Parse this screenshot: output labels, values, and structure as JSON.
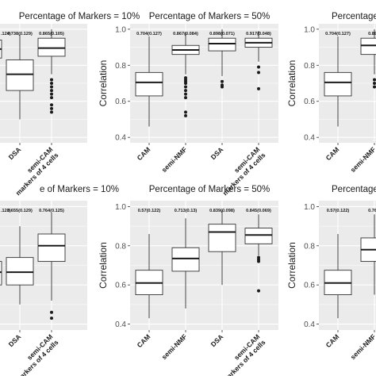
{
  "chart_data": [
    {
      "type": "box",
      "title": "Percentage of Markers = 10%",
      "ylabel": "",
      "ylim": [
        0.4,
        1.0
      ],
      "y_ticks": [],
      "grid": true,
      "crop": "left",
      "categories": [
        "",
        "DSA",
        "semi-CAM\nmarkers of 4 cells"
      ],
      "stat_labels": [
        ".124)",
        "0.738(0.129)",
        "0.865(0.105)"
      ],
      "boxes": [
        {
          "whisker_low": 0.79,
          "q1": 0.84,
          "median": 0.89,
          "q3": 0.94,
          "whisker_high": 1.0,
          "outliers": []
        },
        {
          "whisker_low": 0.5,
          "q1": 0.66,
          "median": 0.75,
          "q3": 0.83,
          "whisker_high": 0.97,
          "outliers": []
        },
        {
          "whisker_low": 0.75,
          "q1": 0.85,
          "median": 0.895,
          "q3": 0.95,
          "whisker_high": 1.0,
          "outliers": [
            0.72,
            0.7,
            0.68,
            0.66,
            0.64,
            0.62,
            0.58,
            0.56,
            0.54
          ]
        }
      ]
    },
    {
      "type": "box",
      "title": "Percentage of Markers = 50%",
      "ylabel": "Correlation",
      "ylim": [
        0.4,
        1.0
      ],
      "y_ticks": [
        "0.4",
        "0.6",
        "0.8",
        "1.0"
      ],
      "grid": true,
      "crop": "none",
      "categories": [
        "CAM",
        "semi-NMF",
        "DSA",
        "semi-CAM\nmarkers of 4 cells"
      ],
      "stat_labels": [
        "0.704(0.127)",
        "0.867(0.084)",
        "0.898(0.071)",
        "0.917(0.048)"
      ],
      "boxes": [
        {
          "whisker_low": 0.46,
          "q1": 0.63,
          "median": 0.705,
          "q3": 0.76,
          "whisker_high": 0.96,
          "outliers": []
        },
        {
          "whisker_low": 0.75,
          "q1": 0.86,
          "median": 0.885,
          "q3": 0.91,
          "whisker_high": 0.98,
          "outliers": [
            0.73,
            0.72,
            0.71,
            0.7,
            0.68,
            0.66,
            0.64,
            0.62,
            0.54,
            0.52
          ]
        },
        {
          "whisker_low": 0.74,
          "q1": 0.88,
          "median": 0.92,
          "q3": 0.95,
          "whisker_high": 1.0,
          "outliers": [
            0.71,
            0.69,
            0.68
          ]
        },
        {
          "whisker_low": 0.82,
          "q1": 0.9,
          "median": 0.925,
          "q3": 0.95,
          "whisker_high": 0.99,
          "outliers": [
            0.79,
            0.76,
            0.67
          ]
        }
      ]
    },
    {
      "type": "box",
      "title": "Percentage",
      "ylabel": "Correlation",
      "ylim": [
        0.4,
        1.0
      ],
      "y_ticks": [
        "0.4",
        "0.6",
        "0.8",
        "1.0"
      ],
      "grid": true,
      "crop": "right",
      "categories": [
        "CAM",
        "semi-NMF"
      ],
      "stat_labels": [
        "0.704(0.127)",
        "0.895("
      ],
      "boxes": [
        {
          "whisker_low": 0.46,
          "q1": 0.63,
          "median": 0.705,
          "q3": 0.76,
          "whisker_high": 0.96,
          "outliers": []
        },
        {
          "whisker_low": 0.75,
          "q1": 0.86,
          "median": 0.91,
          "q3": 0.95,
          "whisker_high": 1.0,
          "outliers": [
            0.72,
            0.7,
            0.68
          ]
        }
      ]
    },
    {
      "type": "box",
      "title": "e of Markers = 10%",
      "ylabel": "",
      "ylim": [
        0.4,
        1.0
      ],
      "y_ticks": [],
      "grid": true,
      "crop": "left",
      "categories": [
        "",
        "DSA",
        "semi-CAM\nmarkers of 4 cells"
      ],
      "stat_labels": [
        ".123)",
        "0.655(0.129)",
        "0.764(0.125)"
      ],
      "boxes": [
        {
          "whisker_low": 0.5,
          "q1": 0.6,
          "median": 0.665,
          "q3": 0.72,
          "whisker_high": 0.85,
          "outliers": []
        },
        {
          "whisker_low": 0.5,
          "q1": 0.6,
          "median": 0.665,
          "q3": 0.74,
          "whisker_high": 0.9,
          "outliers": []
        },
        {
          "whisker_low": 0.52,
          "q1": 0.72,
          "median": 0.8,
          "q3": 0.86,
          "whisker_high": 0.97,
          "outliers": [
            0.46,
            0.43
          ]
        }
      ]
    },
    {
      "type": "box",
      "title": "Percentage of Markers = 50%",
      "ylabel": "Correlation",
      "ylim": [
        0.4,
        1.0
      ],
      "y_ticks": [
        "0.4",
        "0.6",
        "0.8",
        "1.0"
      ],
      "grid": true,
      "crop": "none",
      "categories": [
        "CAM",
        "semi-NMF",
        "DSA",
        "semi-CAM\nmarkers of 4 cells"
      ],
      "stat_labels": [
        "0.57(0.122)",
        "0.713(0.13)",
        "0.839(0.098)",
        "0.845(0.069)"
      ],
      "boxes": [
        {
          "whisker_low": 0.43,
          "q1": 0.55,
          "median": 0.61,
          "q3": 0.675,
          "whisker_high": 0.86,
          "outliers": []
        },
        {
          "whisker_low": 0.48,
          "q1": 0.67,
          "median": 0.735,
          "q3": 0.79,
          "whisker_high": 0.94,
          "outliers": []
        },
        {
          "whisker_low": 0.6,
          "q1": 0.77,
          "median": 0.87,
          "q3": 0.91,
          "whisker_high": 0.98,
          "outliers": []
        },
        {
          "whisker_low": 0.75,
          "q1": 0.81,
          "median": 0.855,
          "q3": 0.89,
          "whisker_high": 0.96,
          "outliers": [
            0.74,
            0.73,
            0.72,
            0.57
          ]
        }
      ]
    },
    {
      "type": "box",
      "title": "Percentage",
      "ylabel": "Correlation",
      "ylim": [
        0.4,
        1.0
      ],
      "y_ticks": [
        "0.4",
        "0.6",
        "0.8",
        "1.0"
      ],
      "grid": true,
      "crop": "right",
      "categories": [
        "CAM",
        "semi-NMF"
      ],
      "stat_labels": [
        "0.57(0.122)",
        "0.766("
      ],
      "boxes": [
        {
          "whisker_low": 0.43,
          "q1": 0.55,
          "median": 0.61,
          "q3": 0.675,
          "whisker_high": 0.86,
          "outliers": []
        },
        {
          "whisker_low": 0.55,
          "q1": 0.72,
          "median": 0.78,
          "q3": 0.84,
          "whisker_high": 0.96,
          "outliers": []
        }
      ]
    }
  ]
}
